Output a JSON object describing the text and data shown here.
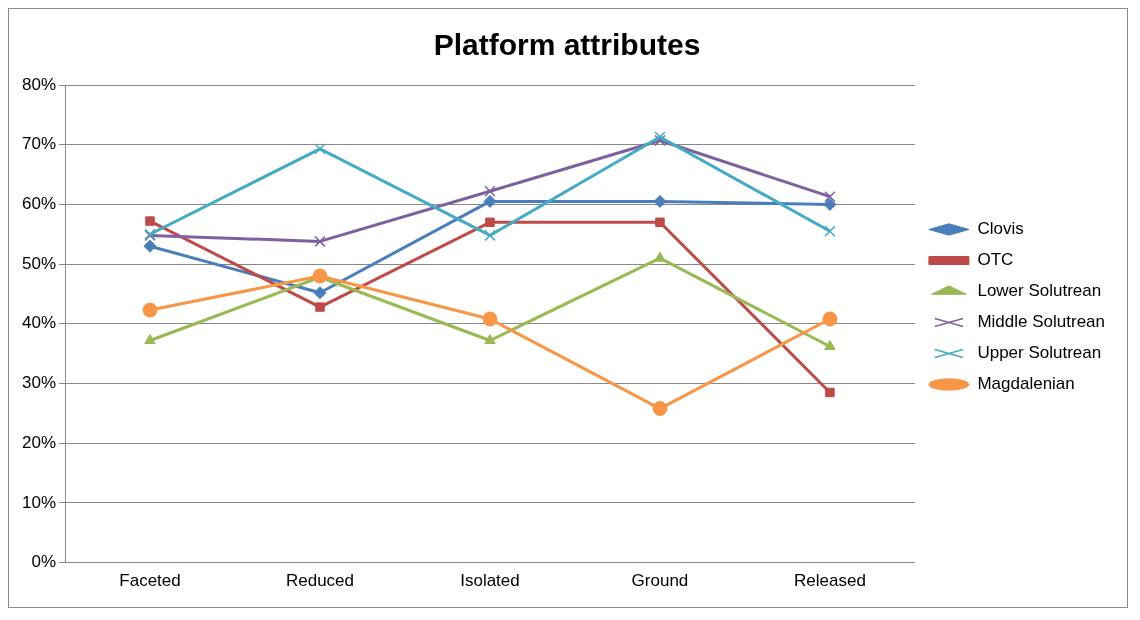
{
  "chart_data": {
    "type": "line",
    "title": "Platform attributes",
    "categories": [
      "Faceted",
      "Reduced",
      "Isolated",
      "Ground",
      "Released"
    ],
    "series": [
      {
        "name": "Clovis",
        "color": "#4a7ebb",
        "marker": "diamond",
        "values": [
          53,
          45.2,
          60.5,
          60.5,
          60
        ]
      },
      {
        "name": "OTC",
        "color": "#be4b48",
        "marker": "square",
        "values": [
          57.2,
          42.8,
          57,
          57,
          28.5
        ]
      },
      {
        "name": "Lower Solutrean",
        "color": "#98b954",
        "marker": "triangle",
        "values": [
          37.2,
          47.8,
          37.2,
          51,
          36.2
        ]
      },
      {
        "name": "Middle Solutrean",
        "color": "#7d60a0",
        "marker": "cross",
        "values": [
          54.8,
          53.8,
          62.2,
          70.7,
          61.3
        ]
      },
      {
        "name": "Upper Solutrean",
        "color": "#46aac5",
        "marker": "cross",
        "values": [
          55,
          69.3,
          54.8,
          71.3,
          55.5
        ]
      },
      {
        "name": "Magdalenian",
        "color": "#f79646",
        "marker": "circle",
        "values": [
          42.3,
          48,
          40.8,
          25.8,
          40.8
        ]
      }
    ],
    "ylim": [
      0,
      80
    ],
    "yticks": [
      {
        "value": 0,
        "label": "0%"
      },
      {
        "value": 10,
        "label": "10%"
      },
      {
        "value": 20,
        "label": "20%"
      },
      {
        "value": 30,
        "label": "30%"
      },
      {
        "value": 40,
        "label": "40%"
      },
      {
        "value": 50,
        "label": "50%"
      },
      {
        "value": 60,
        "label": "60%"
      },
      {
        "value": 70,
        "label": "70%"
      },
      {
        "value": 80,
        "label": "80%"
      }
    ],
    "grid": "y",
    "legend": "right",
    "line_style": "solid"
  }
}
